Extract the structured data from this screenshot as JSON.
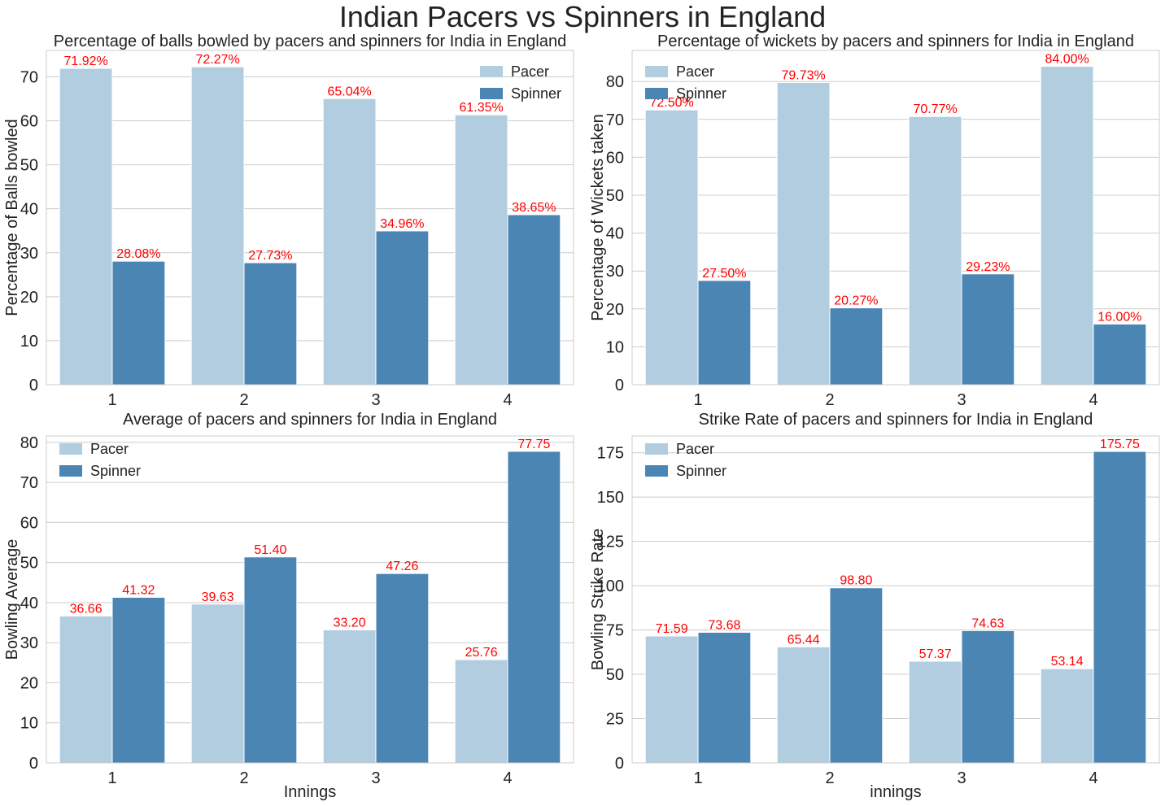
{
  "suptitle": "Indian Pacers vs Spinners in England",
  "colors": {
    "pacer": "#b3cde0",
    "spinner": "#4a85b3",
    "label": "#ff0000",
    "grid": "#cccccc",
    "spine": "#cccccc"
  },
  "chart_data": [
    {
      "type": "bar",
      "title": "Percentage of balls bowled by pacers and spinners for India in England",
      "xlabel": "",
      "ylabel": "Percentage of Balls bowled",
      "categories": [
        "1",
        "2",
        "3",
        "4"
      ],
      "series": [
        {
          "name": "Pacer",
          "values": [
            71.92,
            72.27,
            65.04,
            61.35
          ],
          "labels": [
            "71.92%",
            "72.27%",
            "65.04%",
            "61.35%"
          ]
        },
        {
          "name": "Spinner",
          "values": [
            28.08,
            27.73,
            34.96,
            38.65
          ],
          "labels": [
            "28.08%",
            "27.73%",
            "34.96%",
            "38.65%"
          ]
        }
      ],
      "ylim": [
        0,
        76
      ],
      "yticks": [
        0,
        10,
        20,
        30,
        40,
        50,
        60,
        70
      ],
      "legend": "top-right",
      "grid": true
    },
    {
      "type": "bar",
      "title": "Percentage of wickets by pacers and spinners for India in England",
      "xlabel": "",
      "ylabel": "Percentage of Wickets taken",
      "categories": [
        "1",
        "2",
        "3",
        "4"
      ],
      "series": [
        {
          "name": "Pacer",
          "values": [
            72.5,
            79.73,
            70.77,
            84.0
          ],
          "labels": [
            "72.50%",
            "79.73%",
            "70.77%",
            "84.00%"
          ]
        },
        {
          "name": "Spinner",
          "values": [
            27.5,
            20.27,
            29.23,
            16.0
          ],
          "labels": [
            "27.50%",
            "20.27%",
            "29.23%",
            "16.00%"
          ]
        }
      ],
      "ylim": [
        0,
        88.2
      ],
      "yticks": [
        0,
        10,
        20,
        30,
        40,
        50,
        60,
        70,
        80
      ],
      "legend": "top-left",
      "grid": true
    },
    {
      "type": "bar",
      "title": "Average of pacers and spinners for India in England",
      "xlabel": "Innings",
      "ylabel": "Bowling Average",
      "categories": [
        "1",
        "2",
        "3",
        "4"
      ],
      "series": [
        {
          "name": "Pacer",
          "values": [
            36.66,
            39.63,
            33.2,
            25.76
          ],
          "labels": [
            "36.66",
            "39.63",
            "33.20",
            "25.76"
          ]
        },
        {
          "name": "Spinner",
          "values": [
            41.32,
            51.4,
            47.26,
            77.75
          ],
          "labels": [
            "41.32",
            "51.40",
            "47.26",
            "77.75"
          ]
        }
      ],
      "ylim": [
        0,
        81.6
      ],
      "yticks": [
        0,
        10,
        20,
        30,
        40,
        50,
        60,
        70,
        80
      ],
      "legend": "top-left",
      "grid": true
    },
    {
      "type": "bar",
      "title": "Strike Rate of pacers and spinners for India in England",
      "xlabel": "innings",
      "ylabel": "Bowling Strike Rate",
      "categories": [
        "1",
        "2",
        "3",
        "4"
      ],
      "series": [
        {
          "name": "Pacer",
          "values": [
            71.59,
            65.44,
            57.37,
            53.14
          ],
          "labels": [
            "71.59",
            "65.44",
            "57.37",
            "53.14"
          ]
        },
        {
          "name": "Spinner",
          "values": [
            73.68,
            98.8,
            74.63,
            175.75
          ],
          "labels": [
            "73.68",
            "98.80",
            "74.63",
            "175.75"
          ]
        }
      ],
      "ylim": [
        0,
        184.5
      ],
      "yticks": [
        0,
        25,
        50,
        75,
        100,
        125,
        150,
        175
      ],
      "legend": "top-left",
      "grid": true
    }
  ]
}
